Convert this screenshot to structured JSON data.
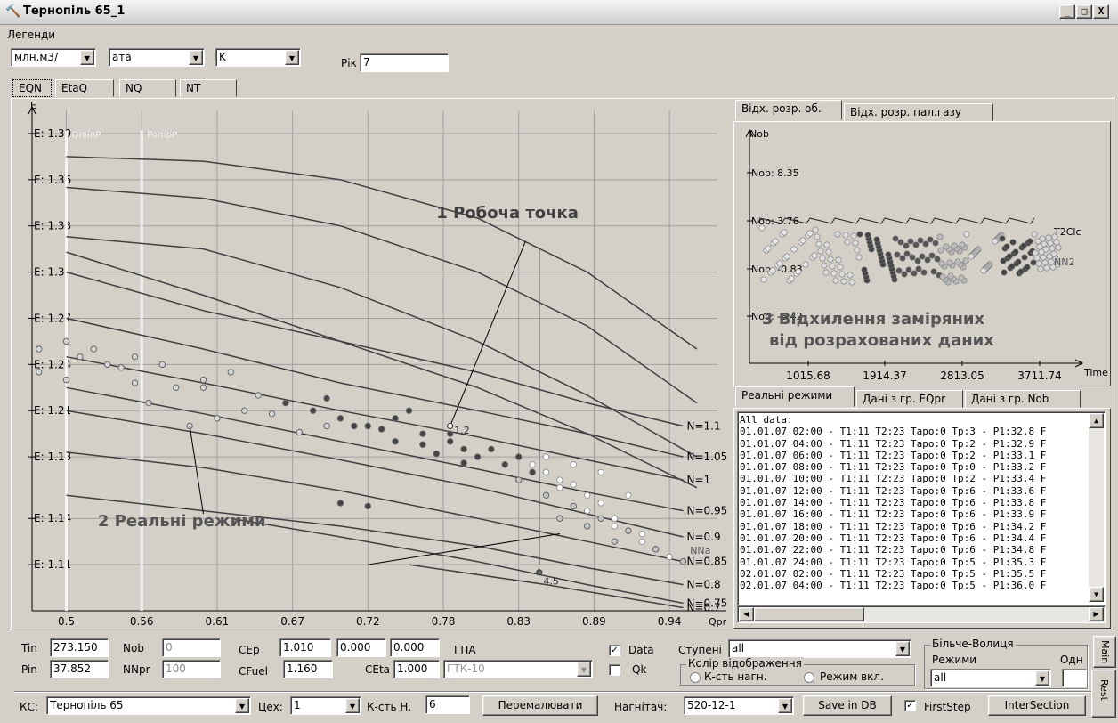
{
  "window": {
    "title": "Тернопіль 65_1",
    "minimize": "_",
    "maximize": "□",
    "close": "X"
  },
  "menu": {
    "legends": "Легенди"
  },
  "units": {
    "flow": "млн.м3/",
    "pressure": "ата",
    "temperature": "K",
    "year_label": "Рік",
    "year_value": "7"
  },
  "tabs": [
    "EQN",
    "EtaQ",
    "NQ",
    "NT"
  ],
  "main_chart": {
    "chart_data": {
      "type": "scatter",
      "ylabel": "E",
      "xlabel": "Qpr",
      "xlim": [
        0.475,
        0.975
      ],
      "ylim": [
        1.08,
        1.405
      ],
      "x_ticks": [
        "0.5",
        "0.56",
        "0.61",
        "0.67",
        "0.72",
        "0.78",
        "0.83",
        "0.89",
        "0.94"
      ],
      "x_tick_values": [
        0.5,
        0.555,
        0.61,
        0.665,
        0.72,
        0.775,
        0.83,
        0.885,
        0.94
      ],
      "y_ticks": [
        "E: 1.39",
        "E: 1.36",
        "E: 1.33",
        "E: 1.3",
        "E: 1.27",
        "E: 1.24",
        "E: 1.21",
        "E: 1.18",
        "E: 1.14",
        "E: 1.11"
      ],
      "y_tick_values": [
        1.39,
        1.36,
        1.33,
        1.3,
        1.27,
        1.24,
        1.21,
        1.18,
        1.14,
        1.11
      ],
      "vertical_lines": [
        {
          "name": "QminP",
          "x": 0.5
        },
        {
          "name": "PompP",
          "x": 0.555
        }
      ],
      "curves": [
        {
          "name": "",
          "points": [
            [
              0.5,
              1.375
            ],
            [
              0.6,
              1.372
            ],
            [
              0.7,
              1.36
            ],
            [
              0.8,
              1.335
            ],
            [
              0.88,
              1.3
            ],
            [
              0.96,
              1.25
            ]
          ]
        },
        {
          "name": "",
          "points": [
            [
              0.5,
              1.355
            ],
            [
              0.6,
              1.348
            ],
            [
              0.7,
              1.33
            ],
            [
              0.8,
              1.3
            ],
            [
              0.88,
              1.265
            ],
            [
              0.96,
              1.215
            ]
          ]
        },
        {
          "name": "",
          "points": [
            [
              0.5,
              1.323
            ],
            [
              0.6,
              1.315
            ],
            [
              0.7,
              1.29
            ],
            [
              0.8,
              1.255
            ],
            [
              0.88,
              1.22
            ],
            [
              0.96,
              1.18
            ]
          ]
        },
        {
          "name": "",
          "points": [
            [
              0.5,
              1.313
            ],
            [
              0.6,
              1.285
            ],
            [
              0.7,
              1.255
            ],
            [
              0.8,
              1.225
            ],
            [
              0.88,
              1.195
            ],
            [
              0.96,
              1.16
            ]
          ]
        },
        {
          "name": "N=1.1",
          "points": [
            [
              0.5,
              1.3
            ],
            [
              0.6,
              1.275
            ],
            [
              0.7,
              1.255
            ],
            [
              0.8,
              1.235
            ],
            [
              0.88,
              1.215
            ],
            [
              0.95,
              1.2
            ]
          ]
        },
        {
          "name": "N=1.05",
          "points": [
            [
              0.5,
              1.27
            ],
            [
              0.6,
              1.25
            ],
            [
              0.7,
              1.228
            ],
            [
              0.8,
              1.21
            ],
            [
              0.88,
              1.195
            ],
            [
              0.95,
              1.18
            ]
          ]
        },
        {
          "name": "N=1",
          "points": [
            [
              0.5,
              1.245
            ],
            [
              0.6,
              1.228
            ],
            [
              0.7,
              1.21
            ],
            [
              0.8,
              1.193
            ],
            [
              0.88,
              1.178
            ],
            [
              0.95,
              1.165
            ]
          ]
        },
        {
          "name": "N=0.95",
          "points": [
            [
              0.5,
              1.225
            ],
            [
              0.6,
              1.208
            ],
            [
              0.7,
              1.19
            ],
            [
              0.8,
              1.172
            ],
            [
              0.88,
              1.157
            ],
            [
              0.95,
              1.145
            ]
          ]
        },
        {
          "name": "N=0.9",
          "points": [
            [
              0.5,
              1.21
            ],
            [
              0.6,
              1.195
            ],
            [
              0.7,
              1.178
            ],
            [
              0.8,
              1.16
            ],
            [
              0.88,
              1.143
            ],
            [
              0.95,
              1.128
            ]
          ]
        },
        {
          "name": "N=0.85",
          "points": [
            [
              0.5,
              1.183
            ],
            [
              0.6,
              1.173
            ],
            [
              0.7,
              1.158
            ],
            [
              0.8,
              1.14
            ],
            [
              0.88,
              1.125
            ],
            [
              0.95,
              1.112
            ]
          ]
        },
        {
          "name": "N=0.8",
          "points": [
            [
              0.5,
              1.155
            ],
            [
              0.6,
              1.145
            ],
            [
              0.7,
              1.135
            ],
            [
              0.8,
              1.122
            ],
            [
              0.88,
              1.108
            ],
            [
              0.95,
              1.097
            ]
          ]
        },
        {
          "name": "N=0.75",
          "points": [
            [
              0.62,
              1.14
            ],
            [
              0.7,
              1.128
            ],
            [
              0.8,
              1.112
            ],
            [
              0.88,
              1.097
            ],
            [
              0.95,
              1.085
            ]
          ]
        },
        {
          "name": "N=0.7",
          "points": [
            [
              0.75,
              1.11
            ],
            [
              0.85,
              1.097
            ],
            [
              0.95,
              1.082
            ]
          ]
        }
      ],
      "series": [
        {
          "name": "light",
          "color": "#d6d6d6",
          "x": [
            0.48,
            0.5,
            0.52,
            0.53,
            0.55,
            0.57,
            0.6,
            0.62,
            0.64,
            0.66,
            0.5,
            0.55,
            0.58,
            0.63,
            0.69,
            0.51,
            0.54,
            0.6,
            0.48,
            0.56,
            0.59,
            0.61,
            0.65,
            0.67
          ],
          "y": [
            1.25,
            1.255,
            1.25,
            1.24,
            1.245,
            1.24,
            1.23,
            1.235,
            1.22,
            1.215,
            1.23,
            1.228,
            1.225,
            1.21,
            1.2,
            1.245,
            1.238,
            1.225,
            1.235,
            1.215,
            1.2,
            1.205,
            1.208,
            1.196
          ]
        },
        {
          "name": "dark",
          "color": "#444444",
          "x": [
            0.66,
            0.68,
            0.7,
            0.72,
            0.74,
            0.76,
            0.78,
            0.79,
            0.8,
            0.81,
            0.82,
            0.77,
            0.73,
            0.69,
            0.75,
            0.78,
            0.71,
            0.74,
            0.83,
            0.84,
            0.7,
            0.72,
            0.76,
            0.79
          ],
          "y": [
            1.215,
            1.21,
            1.205,
            1.2,
            1.205,
            1.195,
            1.19,
            1.185,
            1.18,
            1.185,
            1.175,
            1.182,
            1.198,
            1.218,
            1.21,
            1.195,
            1.2,
            1.19,
            1.18,
            1.17,
            1.15,
            1.148,
            1.188,
            1.176
          ]
        },
        {
          "name": "white",
          "color": "#ffffff",
          "x": [
            0.84,
            0.85,
            0.86,
            0.87,
            0.88,
            0.89,
            0.9,
            0.91,
            0.92,
            0.93,
            0.85,
            0.87,
            0.89,
            0.91,
            0.86,
            0.88,
            0.9,
            0.92,
            0.94
          ],
          "y": [
            1.175,
            1.17,
            1.165,
            1.162,
            1.155,
            1.15,
            1.14,
            1.132,
            1.125,
            1.12,
            1.18,
            1.175,
            1.17,
            1.155,
            1.16,
            1.145,
            1.135,
            1.13,
            1.115
          ]
        },
        {
          "name": "lightgray2",
          "color": "#c4c4c4",
          "x": [
            0.83,
            0.85,
            0.87,
            0.89,
            0.91,
            0.93,
            0.95,
            0.86,
            0.88,
            0.9
          ],
          "y": [
            1.165,
            1.155,
            1.148,
            1.14,
            1.132,
            1.12,
            1.112,
            1.14,
            1.135,
            1.125
          ]
        }
      ],
      "annotations": [
        "1  Робоча точка",
        "2 Реальні режими",
        "1,2",
        "4,5",
        "NNa",
        "QminP",
        "PompP"
      ]
    }
  },
  "right_panel": {
    "tabs": [
      "Відх. розр. об.",
      "Відх. розр. пал.газу"
    ],
    "chart_data": {
      "type": "scatter",
      "ylabel": "Nob",
      "xlabel": "Time",
      "x_ticks": [
        "1015.68",
        "1914.37",
        "2813.05",
        "3711.74"
      ],
      "y_ticks": [
        "Nob: 8.35",
        "Nob: 3.76",
        "Nob: -0.83",
        "Nob: -5.42"
      ],
      "series_labels": [
        "T2Clc",
        "NN2"
      ],
      "overlay_text": [
        "3 Відхилення заміряних",
        "від розрахованих даних"
      ]
    }
  },
  "list_panel": {
    "tabs": [
      "Реальні режими",
      "Дані з гр. EQpr",
      "Дані з гр. Nob"
    ],
    "lines": [
      "All data:",
      "01.01.07 02:00 - T1:11 T2:23 Tapo:0 Tp:3 - P1:32.8 F",
      "01.01.07 04:00 - T1:11 T2:23 Tapo:0 Tp:2 - P1:32.9 F",
      "01.01.07 06:00 - T1:11 T2:23 Tapo:0 Tp:2 - P1:33.1 F",
      "01.01.07 08:00 - T1:11 T2:23 Tapo:0 Tp:0 - P1:33.2 F",
      "01.01.07 10:00 - T1:11 T2:23 Tapo:0 Tp:2 - P1:33.4 F",
      "01.01.07 12:00 - T1:11 T2:23 Tapo:0 Tp:6 - P1:33.6 F",
      "01.01.07 14:00 - T1:11 T2:23 Tapo:0 Tp:6 - P1:33.8 F",
      "01.01.07 16:00 - T1:11 T2:23 Tapo:0 Tp:6 - P1:33.9 F",
      "01.01.07 18:00 - T1:11 T2:23 Tapo:0 Tp:6 - P1:34.2 F",
      "01.01.07 20:00 - T1:11 T2:23 Tapo:0 Tp:6 - P1:34.4 F",
      "01.01.07 22:00 - T1:11 T2:23 Tapo:0 Tp:6 - P1:34.8 F",
      "01.01.07 24:00 - T1:11 T2:23 Tapo:0 Tp:5 - P1:35.3 F",
      "02.01.07 02:00 - T1:11 T2:23 Tapo:0 Tp:5 - P1:35.5 F",
      "02.01.07 04:00 - T1:11 T2:23 Tapo:0 Tp:5 - P1:36.0 F"
    ]
  },
  "params": {
    "tin_label": "Tin",
    "tin_value": "273.150",
    "pin_label": "Pin",
    "pin_value": "37.852",
    "nob_label": "Nob",
    "nob_value": "0",
    "nnpr_label": "NNpr",
    "nnpr_value": "100",
    "cep_label": "CEp",
    "cep_value": "1.010",
    "cep_value2": "0.000",
    "cep_value3": "0.000",
    "gpa_label": "ГПА",
    "cfuel_label": "CFuel",
    "cfuel_value": "1.160",
    "ceta_label": "CEta",
    "ceta_value": "1.000",
    "gtk_value": "ГТК-10",
    "data_label": "Data",
    "data_checked": "✓",
    "qk_label": "Qk",
    "stages_label": "Ступені",
    "stages_value": "all",
    "color_group_label": "Колір відображення",
    "radio1_label": "К-сть нагн.",
    "radio2_label": "Режим вкл.",
    "group2_label": "Більче-Волиця",
    "modes_label": "Режими",
    "modes_value": "all",
    "odn_label": "Одн"
  },
  "bottom": {
    "ks_label": "КС:",
    "ks_value": "Тернопіль 65",
    "tseh_label": "Цех:",
    "tseh_value": "1",
    "kst_label": "К-сть Н.",
    "kst_value": "6",
    "redraw_button": "Перемалювати",
    "nagn_label": "Нагнітач:",
    "nagn_value": "520-12-1",
    "save_button": "Save in DB",
    "firststep_label": "FirstStep",
    "firststep_checked": "✓",
    "intersection_button": "InterSection"
  },
  "side_tabs": [
    "Main",
    "Rest"
  ]
}
